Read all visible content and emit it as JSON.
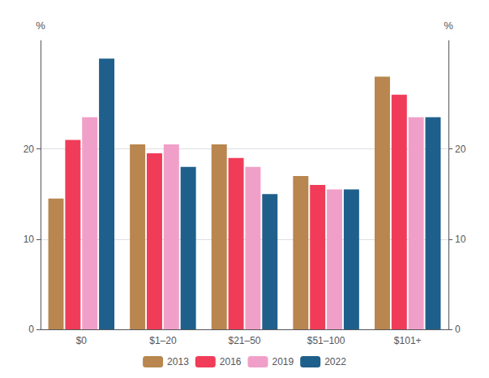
{
  "chart_data": {
    "type": "bar",
    "categories": [
      "$0",
      "$1–20",
      "$21–50",
      "$51–100",
      "$101+"
    ],
    "series": [
      {
        "name": "2013",
        "color": "#b8864e",
        "values": [
          14.5,
          20.5,
          20.5,
          17.0,
          28.0
        ]
      },
      {
        "name": "2016",
        "color": "#f03c58",
        "values": [
          21.0,
          19.5,
          19.0,
          16.0,
          26.0
        ]
      },
      {
        "name": "2019",
        "color": "#f0a0c8",
        "values": [
          23.5,
          20.5,
          18.0,
          15.5,
          23.5
        ]
      },
      {
        "name": "2022",
        "color": "#1f5f8b",
        "values": [
          30.0,
          18.0,
          15.0,
          15.5,
          23.5
        ]
      }
    ],
    "ylabel": "%",
    "y2label": "%",
    "ylim": [
      0,
      32
    ],
    "yticks": [
      0,
      10,
      20
    ],
    "y2lim": [
      0,
      32
    ],
    "y2ticks": [
      0,
      10,
      20
    ],
    "grid": true,
    "legend": "bottom"
  }
}
